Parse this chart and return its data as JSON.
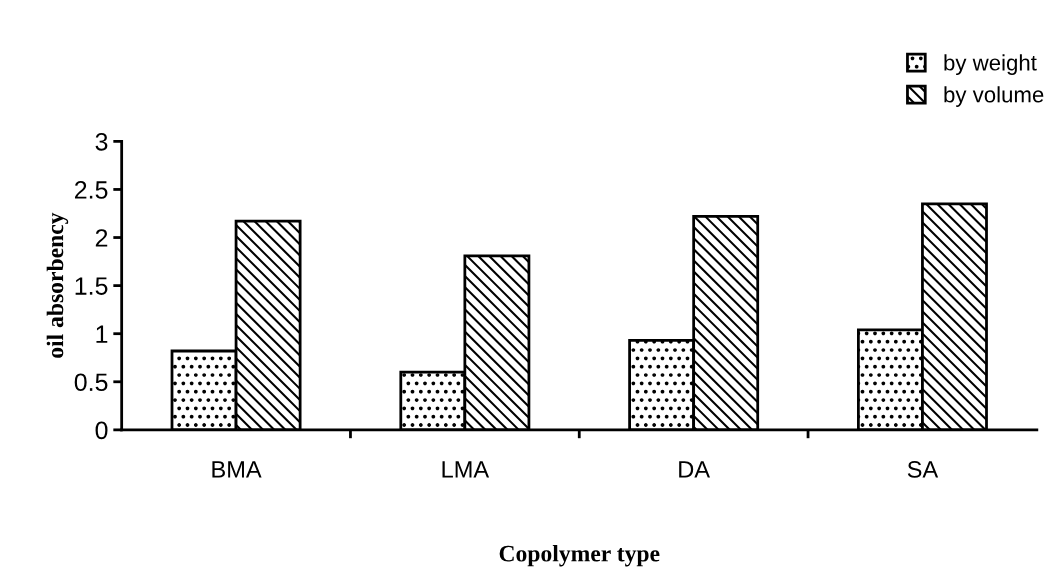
{
  "chart_data": {
    "type": "bar",
    "xlabel": "Copolymer type",
    "ylabel": "oil absorbency",
    "categories": [
      "BMA",
      "LMA",
      "DA",
      "SA"
    ],
    "series": [
      {
        "name": "by weight",
        "color": "#000000",
        "values": [
          0.82,
          0.6,
          0.93,
          1.04
        ]
      },
      {
        "name": "by volume",
        "color": "#000000",
        "values": [
          2.17,
          1.81,
          2.22,
          2.35
        ]
      }
    ],
    "ylim": [
      0,
      3
    ],
    "yticks": [
      0,
      0.5,
      1,
      1.5,
      2,
      2.5,
      3
    ],
    "grid": false,
    "legend": "top right"
  }
}
